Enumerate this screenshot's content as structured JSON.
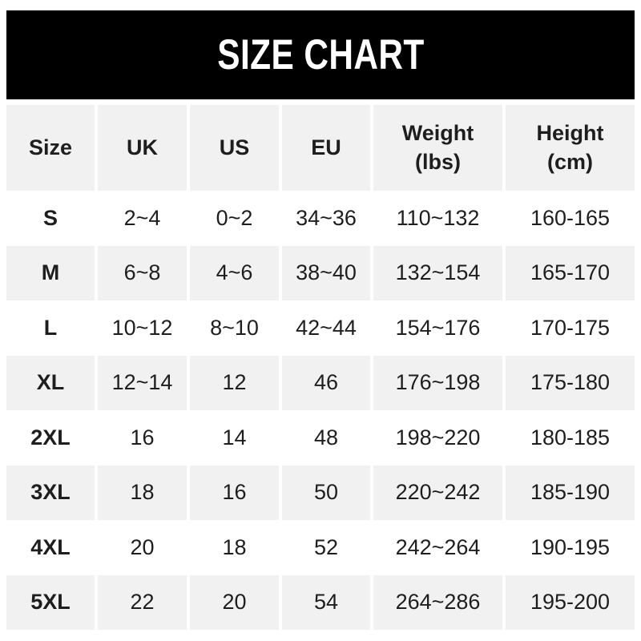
{
  "title": "SIZE CHART",
  "colors": {
    "banner-bg": "#000000",
    "banner-text": "#ffffff",
    "row-shaded": "#f1f1f1",
    "row-plain": "#ffffff",
    "text": "#1e1e1e"
  },
  "chart_data": {
    "type": "table",
    "title": "SIZE CHART",
    "columns": [
      "Size",
      "UK",
      "US",
      "EU",
      "Weight (lbs)",
      "Height (cm)"
    ],
    "columns_display": [
      "Size",
      "UK",
      "US",
      "EU",
      "Weight\n(lbs)",
      "Height\n(cm)"
    ],
    "rows": [
      [
        "S",
        "2~4",
        "0~2",
        "34~36",
        "110~132",
        "160-165"
      ],
      [
        "M",
        "6~8",
        "4~6",
        "38~40",
        "132~154",
        "165-170"
      ],
      [
        "L",
        "10~12",
        "8~10",
        "42~44",
        "154~176",
        "170-175"
      ],
      [
        "XL",
        "12~14",
        "12",
        "46",
        "176~198",
        "175-180"
      ],
      [
        "2XL",
        "16",
        "14",
        "48",
        "198~220",
        "180-185"
      ],
      [
        "3XL",
        "18",
        "16",
        "50",
        "220~242",
        "185-190"
      ],
      [
        "4XL",
        "20",
        "18",
        "52",
        "242~264",
        "190-195"
      ],
      [
        "5XL",
        "22",
        "20",
        "54",
        "264~286",
        "195-200"
      ]
    ],
    "layout": {
      "shaded_rows": [
        "header",
        "M",
        "XL",
        "3XL",
        "5XL"
      ],
      "grid": "off",
      "alignment": "center"
    }
  }
}
